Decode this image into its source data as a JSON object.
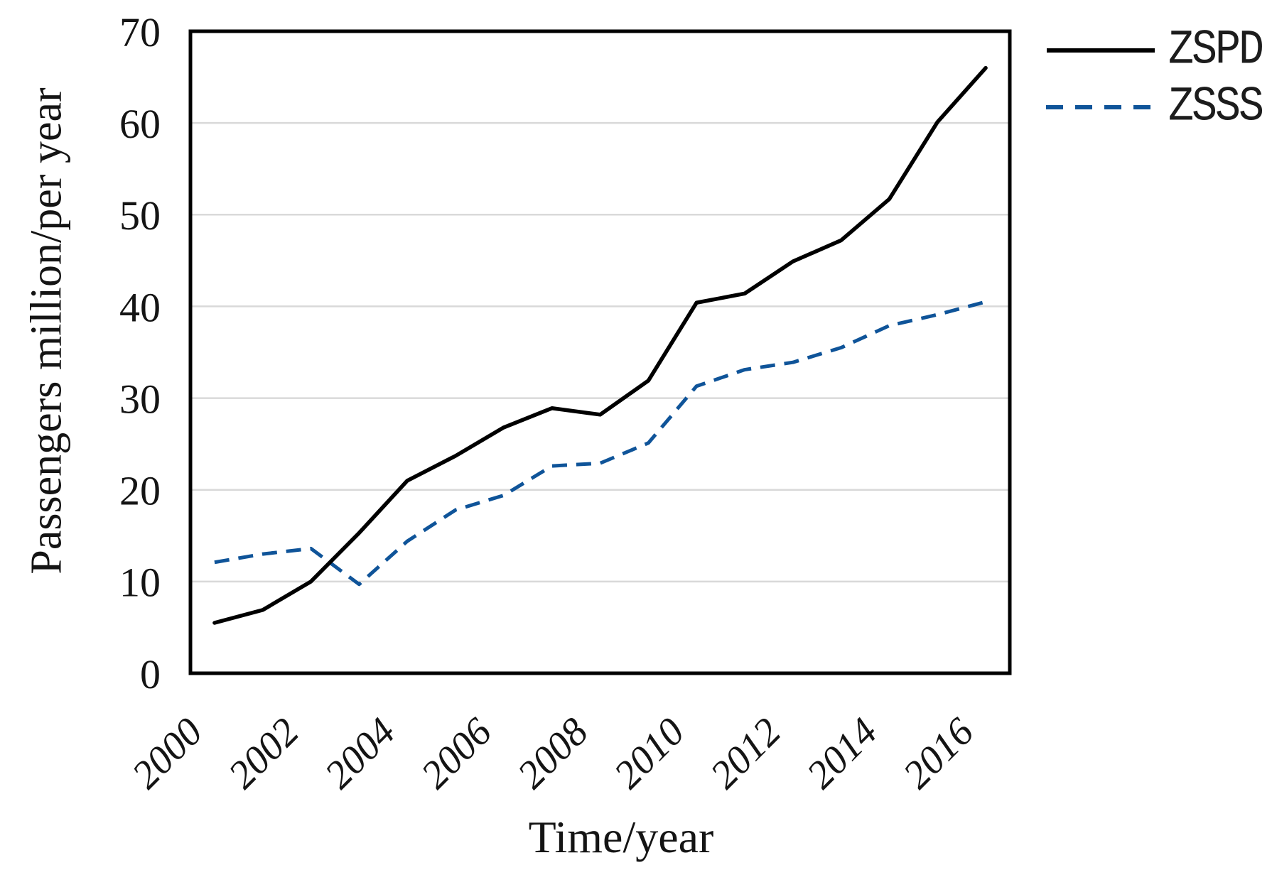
{
  "figure": {
    "background": "#ffffff"
  },
  "chart_data": {
    "type": "line",
    "title": "",
    "xlabel": "Time/year",
    "ylabel": "Passengers million/per year",
    "x": [
      2000,
      2001,
      2002,
      2003,
      2004,
      2005,
      2006,
      2007,
      2008,
      2009,
      2010,
      2011,
      2012,
      2013,
      2014,
      2015,
      2016
    ],
    "ylim": [
      0,
      70
    ],
    "yticks": [
      0,
      10,
      20,
      30,
      40,
      50,
      60,
      70
    ],
    "ytick_labels": [
      "0",
      "10",
      "20",
      "30",
      "40",
      "50",
      "60",
      "70"
    ],
    "xticks": {
      "indices": [
        0,
        2,
        4,
        6,
        8,
        10,
        12,
        14,
        16
      ],
      "labels": [
        "2000",
        "2002",
        "2004",
        "2006",
        "2008",
        "2010",
        "2012",
        "2014",
        "2016"
      ]
    },
    "grid": "horizontal-only",
    "legend_position": "outside-top-right",
    "series": [
      {
        "name": "ZSPD",
        "line_style": "solid",
        "color": "#000000",
        "values": [
          5.5,
          6.9,
          10.0,
          15.3,
          21.0,
          23.7,
          26.8,
          28.9,
          28.2,
          31.9,
          40.4,
          41.4,
          44.9,
          47.2,
          51.7,
          60.1,
          66.0
        ]
      },
      {
        "name": "ZSSS",
        "line_style": "dashed",
        "color": "#0f5499",
        "values": [
          12.1,
          13.0,
          13.6,
          9.7,
          14.4,
          17.8,
          19.4,
          22.6,
          22.9,
          25.1,
          31.3,
          33.1,
          33.9,
          35.5,
          37.9,
          39.1,
          40.5
        ]
      }
    ],
    "colors": {
      "gridline": "#d9d9d9",
      "frame": "#000000",
      "text": "#141414"
    }
  }
}
